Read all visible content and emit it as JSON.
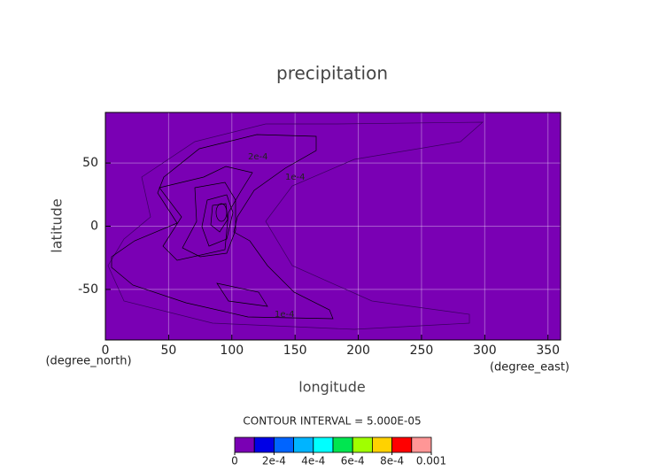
{
  "chart_data": {
    "type": "contour",
    "title": "precipitation",
    "xlabel": "longitude",
    "ylabel": "latitude",
    "xunit": "(degree_east)",
    "yunit": "(degree_north)",
    "xlim": [
      0,
      360
    ],
    "ylim": [
      -90,
      90
    ],
    "xticks": [
      0,
      50,
      100,
      150,
      200,
      250,
      300,
      350
    ],
    "yticks": [
      -50,
      0,
      50
    ],
    "grid": true,
    "background_color": "#7a00b4",
    "contour_labels": [
      "2e-4",
      "1e-4",
      "1e-4"
    ],
    "colorbar": {
      "title": "CONTOUR INTERVAL = 5.000E-05",
      "bins": [
        0,
        0.0001,
        0.0002,
        0.0003,
        0.0004,
        0.0005,
        0.0006,
        0.0007,
        0.0008,
        0.0009,
        0.001
      ],
      "colors": [
        "#7a00b4",
        "#0000e6",
        "#0064ff",
        "#00b4ff",
        "#00ffff",
        "#00e650",
        "#a0ff00",
        "#ffd200",
        "#ff0000",
        "#ff9696"
      ],
      "ticks": [
        0,
        {
          "value": 0.0002,
          "label": "2e-4"
        },
        {
          "value": 0.0004,
          "label": "4e-4"
        },
        {
          "value": 0.0006,
          "label": "6e-4"
        },
        {
          "value": 0.0008,
          "label": "8e-4"
        },
        0.001
      ]
    }
  }
}
